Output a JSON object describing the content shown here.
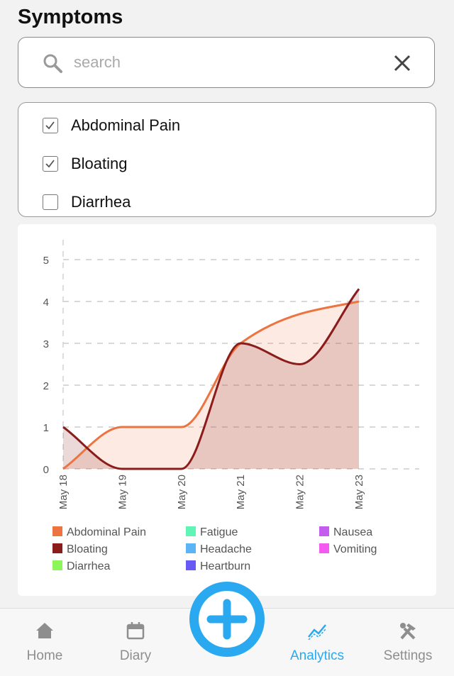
{
  "header": {
    "title": "Symptoms"
  },
  "search": {
    "placeholder": "search"
  },
  "symptoms": [
    {
      "label": "Abdominal Pain",
      "checked": true
    },
    {
      "label": "Bloating",
      "checked": true
    },
    {
      "label": "Diarrhea",
      "checked": false
    }
  ],
  "chart_data": {
    "type": "area",
    "categories": [
      "May 18",
      "May 19",
      "May 20",
      "May 21",
      "May 22",
      "May 23"
    ],
    "series": [
      {
        "name": "Abdominal Pain",
        "color": "#ec7440",
        "values": [
          0,
          1,
          1,
          3,
          3.7,
          4
        ]
      },
      {
        "name": "Bloating",
        "color": "#8a1c1c",
        "values": [
          1,
          0,
          0,
          3,
          2.5,
          4.3
        ]
      },
      {
        "name": "Diarrhea",
        "color": "#8cf55a",
        "values": [
          null,
          null,
          null,
          null,
          null,
          null
        ]
      },
      {
        "name": "Fatigue",
        "color": "#5ff5b4",
        "values": [
          null,
          null,
          null,
          null,
          null,
          null
        ]
      },
      {
        "name": "Headache",
        "color": "#5ab4f5",
        "values": [
          null,
          null,
          null,
          null,
          null,
          null
        ]
      },
      {
        "name": "Heartburn",
        "color": "#6a5af5",
        "values": [
          null,
          null,
          null,
          null,
          null,
          null
        ]
      },
      {
        "name": "Nausea",
        "color": "#c45cf0",
        "values": [
          null,
          null,
          null,
          null,
          null,
          null
        ]
      },
      {
        "name": "Vomiting",
        "color": "#f55af0",
        "values": [
          null,
          null,
          null,
          null,
          null,
          null
        ]
      }
    ],
    "ylim": [
      0,
      5
    ],
    "yticks": [
      0,
      1,
      2,
      3,
      4,
      5
    ],
    "grid": true
  },
  "nav": [
    {
      "label": "Home",
      "active": false
    },
    {
      "label": "Diary",
      "active": false
    },
    {
      "label": "Analytics",
      "active": true
    },
    {
      "label": "Settings",
      "active": false
    }
  ]
}
